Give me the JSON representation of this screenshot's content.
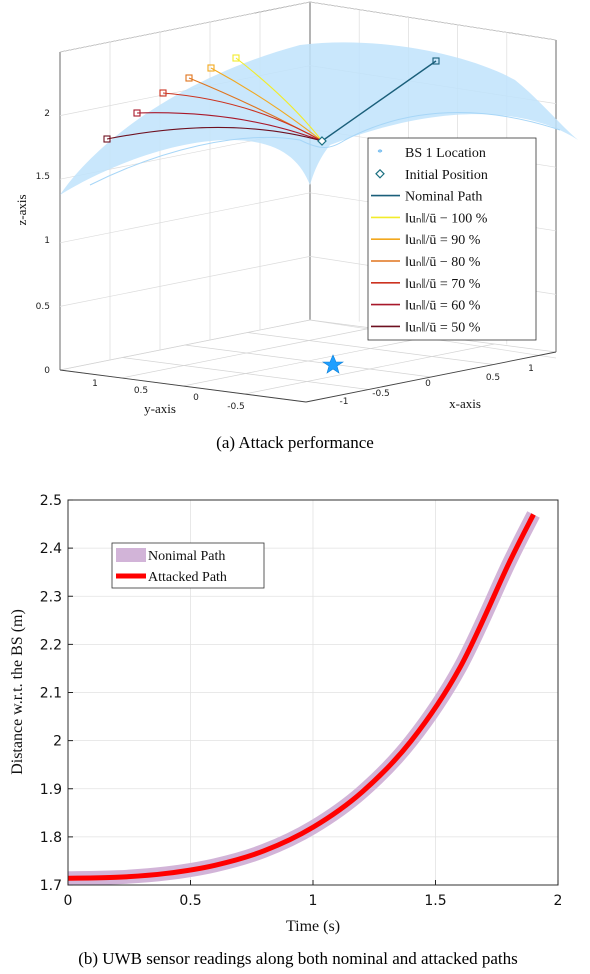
{
  "chart_data": [
    {
      "type": "line",
      "subtype": "3d-line",
      "caption": "(a) Attack performance",
      "xlabel": "x-axis",
      "ylabel": "y-axis",
      "zlabel": "z-axis",
      "x_ticks": [
        "-1",
        "-0.5",
        "0",
        "0.5",
        "1"
      ],
      "y_ticks": [
        "1",
        "0.5",
        "0",
        "-0.5"
      ],
      "z_ticks": [
        "0",
        "0.5",
        "1",
        "1.5",
        "2"
      ],
      "zlim": [
        0,
        2.5
      ],
      "grid": true,
      "legend_position": "right",
      "legend": [
        {
          "label": "BS 1 Location",
          "marker": "star",
          "color": "#3aa0e8"
        },
        {
          "label": "Initial Position",
          "marker": "diamond",
          "color": "#1a6f80"
        },
        {
          "label": "Nominal Path",
          "color": "#1a5f7a"
        },
        {
          "label": "‖uₙ‖/ū − 100 %",
          "color": "#f2ec2a"
        },
        {
          "label": "‖uₙ‖/ū = 90 %",
          "color": "#f2a81e"
        },
        {
          "label": "‖uₙ‖/ū − 80 %",
          "color": "#e0741d"
        },
        {
          "label": "‖uₙ‖/ū = 70 %",
          "color": "#cc3320"
        },
        {
          "label": "‖uₙ‖/ū = 60 %",
          "color": "#a8182a"
        },
        {
          "label": "‖uₙ‖/ū = 50 %",
          "color": "#6e1020"
        }
      ],
      "surface_color": "#bfe3fb"
    },
    {
      "type": "line",
      "caption": "(b) UWB sensor readings along both nominal and attacked paths",
      "xlabel": "Time (s)",
      "ylabel": "Distance w.r.t. the BS (m)",
      "xlim": [
        0,
        2
      ],
      "ylim": [
        1.7,
        2.5
      ],
      "x_ticks": [
        "0",
        "0.5",
        "1",
        "1.5",
        "2"
      ],
      "y_ticks": [
        "1.7",
        "1.8",
        "1.9",
        "2",
        "2.1",
        "2.2",
        "2.3",
        "2.4",
        "2.5"
      ],
      "grid": true,
      "legend_position": "top-left",
      "series": [
        {
          "name": "Nonimal Path",
          "color": "#d2b4d8",
          "x": [
            0,
            0.2,
            0.4,
            0.6,
            0.8,
            1.0,
            1.2,
            1.4,
            1.6,
            1.8,
            1.9
          ],
          "y": [
            1.714,
            1.716,
            1.724,
            1.741,
            1.771,
            1.82,
            1.893,
            1.999,
            2.152,
            2.369,
            2.47
          ]
        },
        {
          "name": "Attacked Path",
          "color": "#ff0000",
          "x": [
            0,
            0.2,
            0.4,
            0.6,
            0.8,
            1.0,
            1.2,
            1.4,
            1.6,
            1.8,
            1.9
          ],
          "y": [
            1.714,
            1.716,
            1.724,
            1.741,
            1.771,
            1.82,
            1.893,
            1.999,
            2.152,
            2.369,
            2.47
          ]
        }
      ]
    }
  ]
}
